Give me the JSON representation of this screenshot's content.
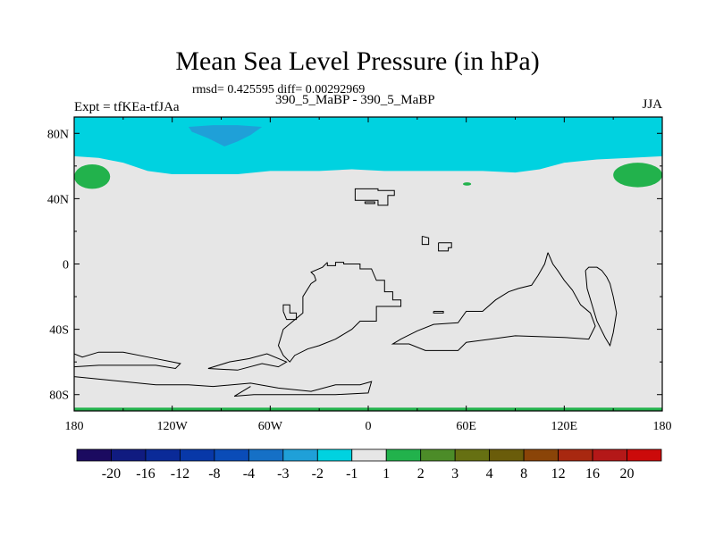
{
  "header": {
    "title": "Mean Sea Level Pressure (in hPa)",
    "stats": "rmsd= 0.425595 diff= 0.00292969",
    "left_label": "Expt = tfKEa-tfJAa",
    "center_label": "390_5_MaBP - 390_5_MaBP",
    "right_label": "JJA"
  },
  "chart_data": {
    "type": "heatmap",
    "title": "Mean Sea Level Pressure (in hPa)",
    "xlabel": "",
    "ylabel": "",
    "xlim": [
      -180,
      180
    ],
    "ylim": [
      -90,
      90
    ],
    "x_ticks": [
      -180,
      -120,
      -60,
      0,
      60,
      120,
      180
    ],
    "x_tick_labels": [
      "180",
      "120W",
      "60W",
      "0",
      "60E",
      "120E",
      "180"
    ],
    "y_ticks": [
      80,
      40,
      0,
      -40,
      -80
    ],
    "y_tick_labels": [
      "80N",
      "40N",
      "0",
      "40S",
      "80S"
    ],
    "background_color": "#e6e6e6",
    "regions": [
      {
        "name": "north-polar-band",
        "level": "-2 to -1",
        "color": "#00d2e0",
        "lon": [
          -180,
          180
        ],
        "lat": [
          65,
          90
        ]
      },
      {
        "name": "north-polar-deep",
        "level": "-3 to -2",
        "color": "#1fa0d8",
        "lon": [
          -110,
          -65
        ],
        "lat": [
          72,
          86
        ]
      },
      {
        "name": "northwest-positive",
        "level": "1 to 2",
        "color": "#22b24c",
        "lon": [
          -180,
          -158
        ],
        "lat": [
          46,
          61
        ]
      },
      {
        "name": "northeast-positive",
        "level": "1 to 2",
        "color": "#22b24c",
        "lon": [
          150,
          180
        ],
        "lat": [
          47,
          62
        ]
      },
      {
        "name": "small-positive",
        "level": "1 to 2",
        "color": "#22b24c",
        "lon": [
          58,
          63
        ],
        "lat": [
          48,
          50
        ]
      },
      {
        "name": "south-pole-edge",
        "level": "1 to 2",
        "color": "#22b24c",
        "lon": [
          -180,
          180
        ],
        "lat": [
          -90,
          -88
        ]
      }
    ],
    "colorbar": {
      "labels": [
        "-20",
        "-16",
        "-12",
        "-8",
        "-4",
        "-3",
        "-2",
        "-1",
        "1",
        "2",
        "3",
        "4",
        "8",
        "12",
        "16",
        "20"
      ],
      "colors": [
        "#1b0a60",
        "#101b80",
        "#0a2a98",
        "#0838a8",
        "#0a4cb8",
        "#1570c6",
        "#1fa0d8",
        "#00d2e0",
        "#e6e6e6",
        "#22b24c",
        "#4c8c28",
        "#667012",
        "#6a5c0a",
        "#8a4408",
        "#a82810",
        "#b41818",
        "#cc0a0a"
      ]
    }
  }
}
